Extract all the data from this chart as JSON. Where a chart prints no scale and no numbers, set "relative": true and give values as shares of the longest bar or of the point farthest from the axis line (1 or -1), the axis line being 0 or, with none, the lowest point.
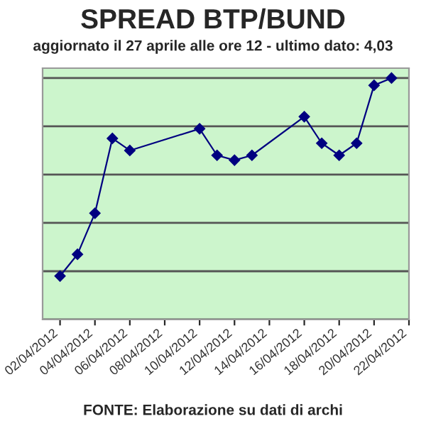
{
  "chart_data": {
    "type": "line",
    "title": "SPREAD BTP/BUND",
    "subtitle": "aggiornato il 27 aprile alle ore 12 - ultimo dato: 4,03",
    "annotations": [
      "FONTE: Elaborazione su dati di archi"
    ],
    "relative": true,
    "x": [
      "2012-04-02",
      "2012-04-03",
      "2012-04-04",
      "2012-04-05",
      "2012-04-06",
      "2012-04-10",
      "2012-04-11",
      "2012-04-12",
      "2012-04-13",
      "2012-04-16",
      "2012-04-17",
      "2012-04-18",
      "2012-04-19",
      "2012-04-20",
      "2012-04-21"
    ],
    "series": [
      {
        "color": "#000080",
        "values": [
          0.18,
          0.27,
          0.44,
          0.75,
          0.7,
          0.79,
          0.68,
          0.66,
          0.68,
          0.84,
          0.73,
          0.68,
          0.73,
          0.97,
          1.0
        ]
      }
    ],
    "xlim": [
      "2012-04-01",
      "2012-04-22"
    ],
    "xticks": [
      {
        "value": "2012-04-02",
        "label": "02/04/2012"
      },
      {
        "value": "2012-04-04",
        "label": "04/04/2012"
      },
      {
        "value": "2012-04-06",
        "label": "06/04/2012"
      },
      {
        "value": "2012-04-08",
        "label": "08/04/2012"
      },
      {
        "value": "2012-04-10",
        "label": "10/04/2012"
      },
      {
        "value": "2012-04-12",
        "label": "12/04/2012"
      },
      {
        "value": "2012-04-14",
        "label": "14/04/2012"
      },
      {
        "value": "2012-04-16",
        "label": "16/04/2012"
      },
      {
        "value": "2012-04-18",
        "label": "18/04/2012"
      },
      {
        "value": "2012-04-20",
        "label": "20/04/2012"
      },
      {
        "value": "2012-04-22",
        "label": "22/04/2012"
      }
    ],
    "grid": "y",
    "marker": "diamond",
    "line_style": "solid",
    "legend": false
  }
}
